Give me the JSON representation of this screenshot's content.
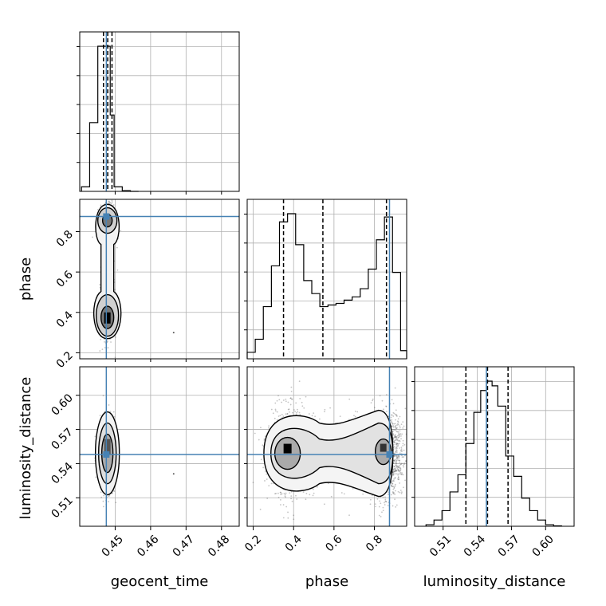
{
  "chart_data": {
    "type": "corner",
    "truth_color": "#4682b4",
    "params": [
      "geocent_time",
      "phase",
      "luminosity_distance"
    ],
    "axis_labels": {
      "geocent_time": "geocent_time",
      "phase": "phase",
      "luminosity_distance": "luminosity_distance"
    },
    "ranges": {
      "geocent_time": [
        0.44,
        0.485
      ],
      "phase": [
        0.17,
        0.96
      ],
      "luminosity_distance": [
        0.485,
        0.625
      ]
    },
    "ticks": {
      "geocent_time": {
        "values": [
          0.45,
          0.46,
          0.47,
          0.48
        ],
        "labels": [
          "0.45",
          "0.46",
          "0.47",
          "0.48"
        ]
      },
      "phase": {
        "values": [
          0.2,
          0.4,
          0.6,
          0.8
        ],
        "labels": [
          "0.2",
          "0.4",
          "0.6",
          "0.8"
        ]
      },
      "luminosity_distance": {
        "values": [
          0.51,
          0.54,
          0.57,
          0.6
        ],
        "labels": [
          "0.51",
          "0.54",
          "0.57",
          "0.60"
        ]
      }
    },
    "truths": {
      "geocent_time": 0.4475,
      "phase": 0.875,
      "luminosity_distance": 0.548
    },
    "quantiles": {
      "geocent_time": [
        0.4467,
        0.4479,
        0.4491
      ],
      "phase": [
        0.35,
        0.545,
        0.86
      ],
      "luminosity_distance": [
        0.53,
        0.549,
        0.567
      ]
    },
    "histograms": {
      "geocent_time": {
        "edges": [
          0.4405,
          0.4428,
          0.4451,
          0.4474,
          0.4486,
          0.4497,
          0.452,
          0.4543,
          0.4566
        ],
        "counts": [
          0.03,
          0.45,
          0.95,
          0.95,
          0.5,
          0.03,
          0.005,
          0.0
        ]
      },
      "phase": {
        "edges": [
          0.17,
          0.21,
          0.25,
          0.29,
          0.33,
          0.37,
          0.41,
          0.45,
          0.49,
          0.53,
          0.57,
          0.61,
          0.65,
          0.69,
          0.73,
          0.77,
          0.81,
          0.85,
          0.89,
          0.93,
          0.96
        ],
        "counts": [
          0.04,
          0.12,
          0.32,
          0.57,
          0.84,
          0.89,
          0.7,
          0.48,
          0.4,
          0.32,
          0.33,
          0.34,
          0.36,
          0.38,
          0.43,
          0.55,
          0.73,
          0.87,
          0.53,
          0.05
        ]
      },
      "luminosity_distance": {
        "edges": [
          0.495,
          0.502,
          0.509,
          0.516,
          0.523,
          0.53,
          0.537,
          0.543,
          0.548,
          0.553,
          0.558,
          0.565,
          0.572,
          0.579,
          0.586,
          0.593,
          0.6,
          0.607,
          0.614
        ],
        "counts": [
          0.01,
          0.04,
          0.1,
          0.22,
          0.33,
          0.53,
          0.73,
          0.87,
          0.93,
          0.9,
          0.77,
          0.45,
          0.32,
          0.18,
          0.1,
          0.04,
          0.01,
          0.003
        ]
      }
    },
    "grid": true
  }
}
